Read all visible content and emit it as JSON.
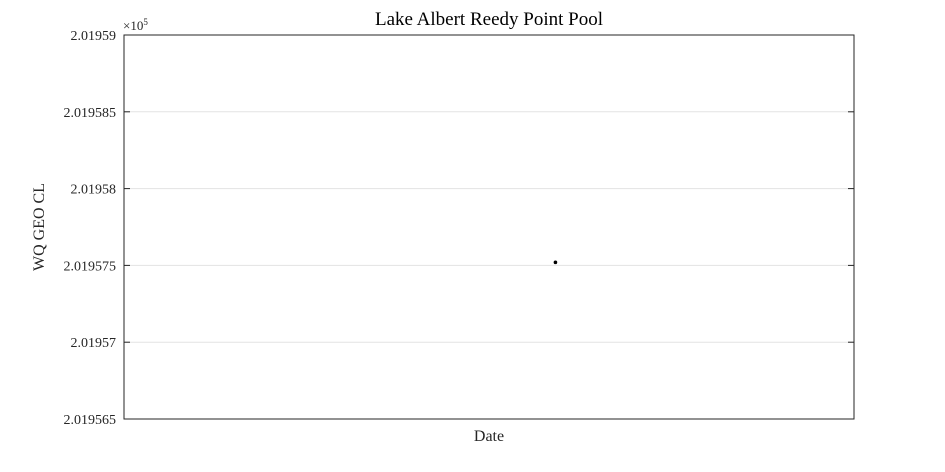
{
  "chart_data": {
    "type": "scatter",
    "title": "Lake Albert Reedy Point Pool",
    "xlabel": "Date",
    "ylabel": "WQ GEO CL",
    "y_exponent_label": "×10",
    "y_exponent_power": "5",
    "ylim": [
      2.019565,
      2.01959
    ],
    "yticks": [
      2.019565,
      2.01957,
      2.019575,
      2.01958,
      2.019585,
      2.01959
    ],
    "ytick_labels": [
      "2.019565",
      "2.01957",
      "2.019575",
      "2.01958",
      "2.019585",
      "2.01959"
    ],
    "grid": true,
    "x_position_fraction": 0.591,
    "points": [
      {
        "y": 2.0195752
      }
    ],
    "point_color": "#000000",
    "grid_color": "#e3e3e3",
    "axis_color": "#262626"
  }
}
